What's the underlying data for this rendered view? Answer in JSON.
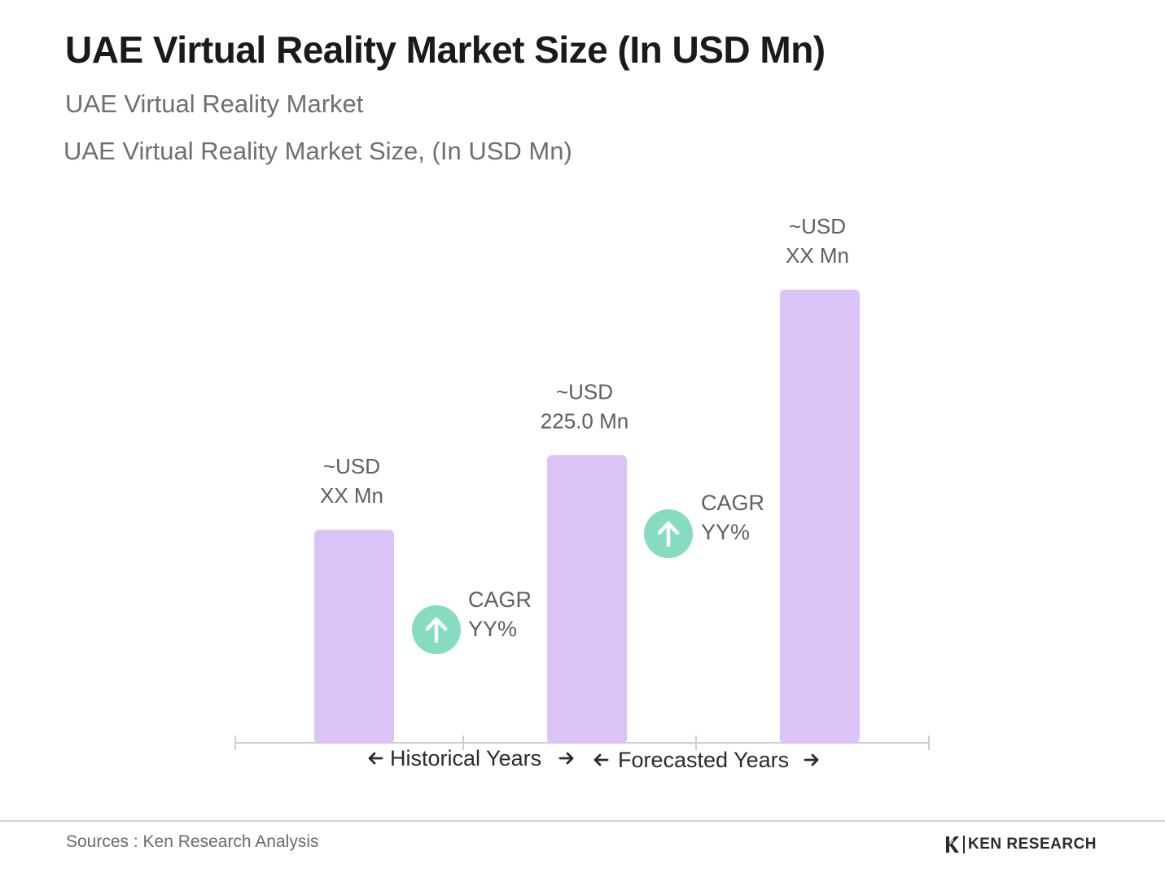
{
  "header": {
    "title": "UAE Virtual Reality Market Size (In USD Mn)",
    "subtitle": "UAE Virtual Reality Market",
    "chart_subtitle": "UAE Virtual Reality Market Size, (In USD Mn)"
  },
  "chart_data": {
    "type": "bar",
    "title": "UAE Virtual Reality Market Size, (In USD Mn)",
    "xlabel": "",
    "ylabel": "",
    "categories": [
      "",
      "",
      ""
    ],
    "values": [
      null,
      225.0,
      null
    ],
    "value_labels": [
      [
        "~USD",
        "XX Mn"
      ],
      [
        "~USD",
        "225.0 Mn"
      ],
      [
        "~USD",
        "XX Mn"
      ]
    ],
    "bar_height_fractions": [
      0.47,
      0.635,
      1.0
    ],
    "bar_color": "#dcc3f7",
    "cagr_annotations": [
      {
        "line1": "CAGR",
        "line2": "YY%",
        "between": [
          0,
          1
        ]
      },
      {
        "line1": "CAGR",
        "line2": "YY%",
        "between": [
          1,
          2
        ]
      }
    ],
    "cagr_icon": "arrow-up-circle-icon",
    "cagr_icon_color": "#86dcc1",
    "x_ranges": [
      {
        "label": "Historical Years"
      },
      {
        "label": "Forecasted Years"
      }
    ],
    "grid": false,
    "legend": "none"
  },
  "footer": {
    "source": "Sources : Ken Research Analysis",
    "brand": "KEN RESEARCH",
    "brand_icon": "ken-research-logo-icon"
  }
}
